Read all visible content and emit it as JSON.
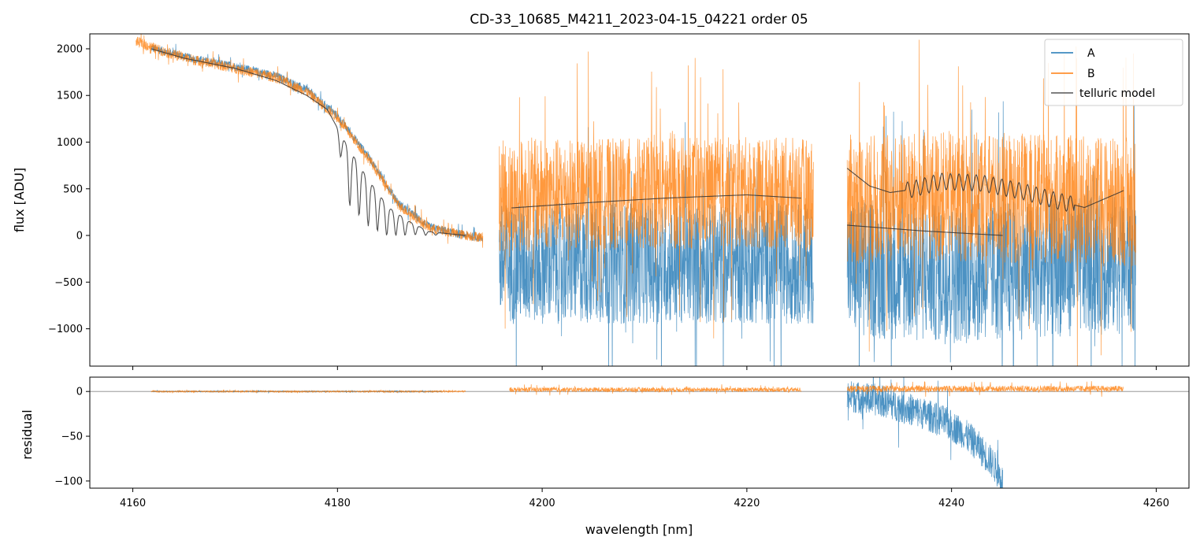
{
  "chart_data": {
    "type": "line",
    "title": "CD-33_10685_M4211_2023-04-15_04221  order 05",
    "xlabel": "wavelength [nm]",
    "xlim": [
      4155.8,
      4263.2
    ],
    "xticks": [
      4160,
      4180,
      4200,
      4220,
      4240,
      4260
    ],
    "colors": {
      "A": "#1f77b4",
      "B": "#ff7f0e",
      "model": "#333333",
      "zero": "#888888"
    },
    "legend": {
      "position": "top-right",
      "entries": [
        {
          "name": "A",
          "color": "#1f77b4"
        },
        {
          "name": "B",
          "color": "#ff7f0e"
        },
        {
          "name": "telluric model",
          "color": "#555555"
        }
      ]
    },
    "panels": [
      {
        "name": "flux",
        "ylabel": "flux [ADU]",
        "ylim": [
          -1400,
          2160
        ],
        "yticks": [
          -1000,
          -500,
          0,
          500,
          1000,
          1500,
          2000
        ],
        "ytick_labels": [
          "−1000",
          "−500",
          "0",
          "500",
          "1000",
          "1500",
          "2000"
        ],
        "series": [
          {
            "name": "A",
            "segments": [
              {
                "x": [
                  4161.8,
                  4166,
                  4170,
                  4174,
                  4177,
                  4180,
                  4183,
                  4186,
                  4189,
                  4192,
                  4194.2
                ],
                "y": [
                  2010,
                  1890,
                  1810,
                  1710,
                  1560,
                  1280,
                  850,
                  340,
                  90,
                  10,
                  -30
                ],
                "noise": 45
              },
              {
                "x": [
                  4195.8,
                  4200,
                  4210,
                  4220,
                  4226.5
                ],
                "y": [
                  -300,
                  -300,
                  -300,
                  -300,
                  -300
                ],
                "noise": 650
              },
              {
                "x": [
                  4229.8,
                  4235,
                  4240,
                  4245,
                  4250,
                  4258
                ],
                "y": [
                  -350,
                  -380,
                  -420,
                  -380,
                  -340,
                  -300
                ],
                "noise": 750
              }
            ]
          },
          {
            "name": "B",
            "segments": [
              {
                "x": [
                  4160.3,
                  4163,
                  4166,
                  4170,
                  4174,
                  4177,
                  4180,
                  4183,
                  4186,
                  4189,
                  4192,
                  4194.2
                ],
                "y": [
                  2080,
                  1970,
                  1880,
                  1790,
                  1690,
                  1540,
                  1260,
                  830,
                  320,
                  80,
                  10,
                  -20
                ],
                "noise": 55
              },
              {
                "x": [
                  4195.8,
                  4200,
                  4210,
                  4220,
                  4226.5
                ],
                "y": [
                  420,
                  440,
                  450,
                  460,
                  440
                ],
                "noise": 600
              },
              {
                "x": [
                  4229.8,
                  4235,
                  4240,
                  4245,
                  4250,
                  4258
                ],
                "y": [
                  380,
                  400,
                  420,
                  400,
                  380,
                  360
                ],
                "noise": 700
              }
            ]
          },
          {
            "name": "telluric model",
            "segments": [
              {
                "x": [
                  4161.8,
                  4165,
                  4170,
                  4174,
                  4177,
                  4179,
                  4181,
                  4183,
                  4185,
                  4187,
                  4189,
                  4192.5
                ],
                "y": [
                  2000,
                  1900,
                  1790,
                  1660,
                  1500,
                  1350,
                  950,
                  600,
                  300,
                  150,
                  40,
                  0
                ],
                "lines": [
                  4180.3,
                  4181.2,
                  4182.1,
                  4183.0,
                  4183.9,
                  4184.8,
                  4185.7,
                  4186.6,
                  4187.6,
                  4188.6,
                  4189.6
                ],
                "depth": [
                  250,
                  600,
                  550,
                  500,
                  420,
                  330,
                  250,
                  180,
                  110,
                  60,
                  30
                ]
              },
              {
                "x": [
                  4197,
                  4205,
                  4212,
                  4220,
                  4225.3
                ],
                "y": [
                  295,
                  355,
                  400,
                  435,
                  400
                ]
              },
              {
                "x": [
                  4229.8,
                  4232,
                  4234,
                  4236,
                  4239,
                  4243,
                  4247,
                  4250,
                  4253,
                  4256.8
                ],
                "y": [
                  720,
                  530,
                  460,
                  490,
                  580,
                  560,
                  470,
                  380,
                  300,
                  480
                ],
                "wiggle": 110
              },
              {
                "x": [
                  4229.8,
                  4237,
                  4245
                ],
                "y": [
                  110,
                  50,
                  0
                ]
              }
            ]
          }
        ]
      },
      {
        "name": "residual",
        "ylabel": "residual",
        "ylim": [
          -108,
          16
        ],
        "yticks": [
          -100,
          -50,
          0
        ],
        "ytick_labels": [
          "−100",
          "−50",
          "0"
        ],
        "series": [
          {
            "name": "A",
            "segments": [
              {
                "x": [
                  4161.8,
                  4190.2
                ],
                "y": [
                  0,
                  0
                ],
                "noise": 0.6
              },
              {
                "x": [
                  4229.8,
                  4233,
                  4236,
                  4239,
                  4241,
                  4242.5,
                  4244,
                  4245
                ],
                "y": [
                  -5,
                  -10,
                  -20,
                  -32,
                  -45,
                  -60,
                  -80,
                  -100
                ],
                "noise": 18
              }
            ]
          },
          {
            "name": "B",
            "segments": [
              {
                "x": [
                  4161.8,
                  4192.5
                ],
                "y": [
                  0,
                  0
                ],
                "noise": 0.8
              },
              {
                "x": [
                  4196.8,
                  4225.3
                ],
                "y": [
                  2,
                  2
                ],
                "noise": 2.5
              },
              {
                "x": [
                  4229.8,
                  4256.8
                ],
                "y": [
                  3,
                  3
                ],
                "noise": 3.5
              }
            ]
          }
        ]
      }
    ]
  }
}
